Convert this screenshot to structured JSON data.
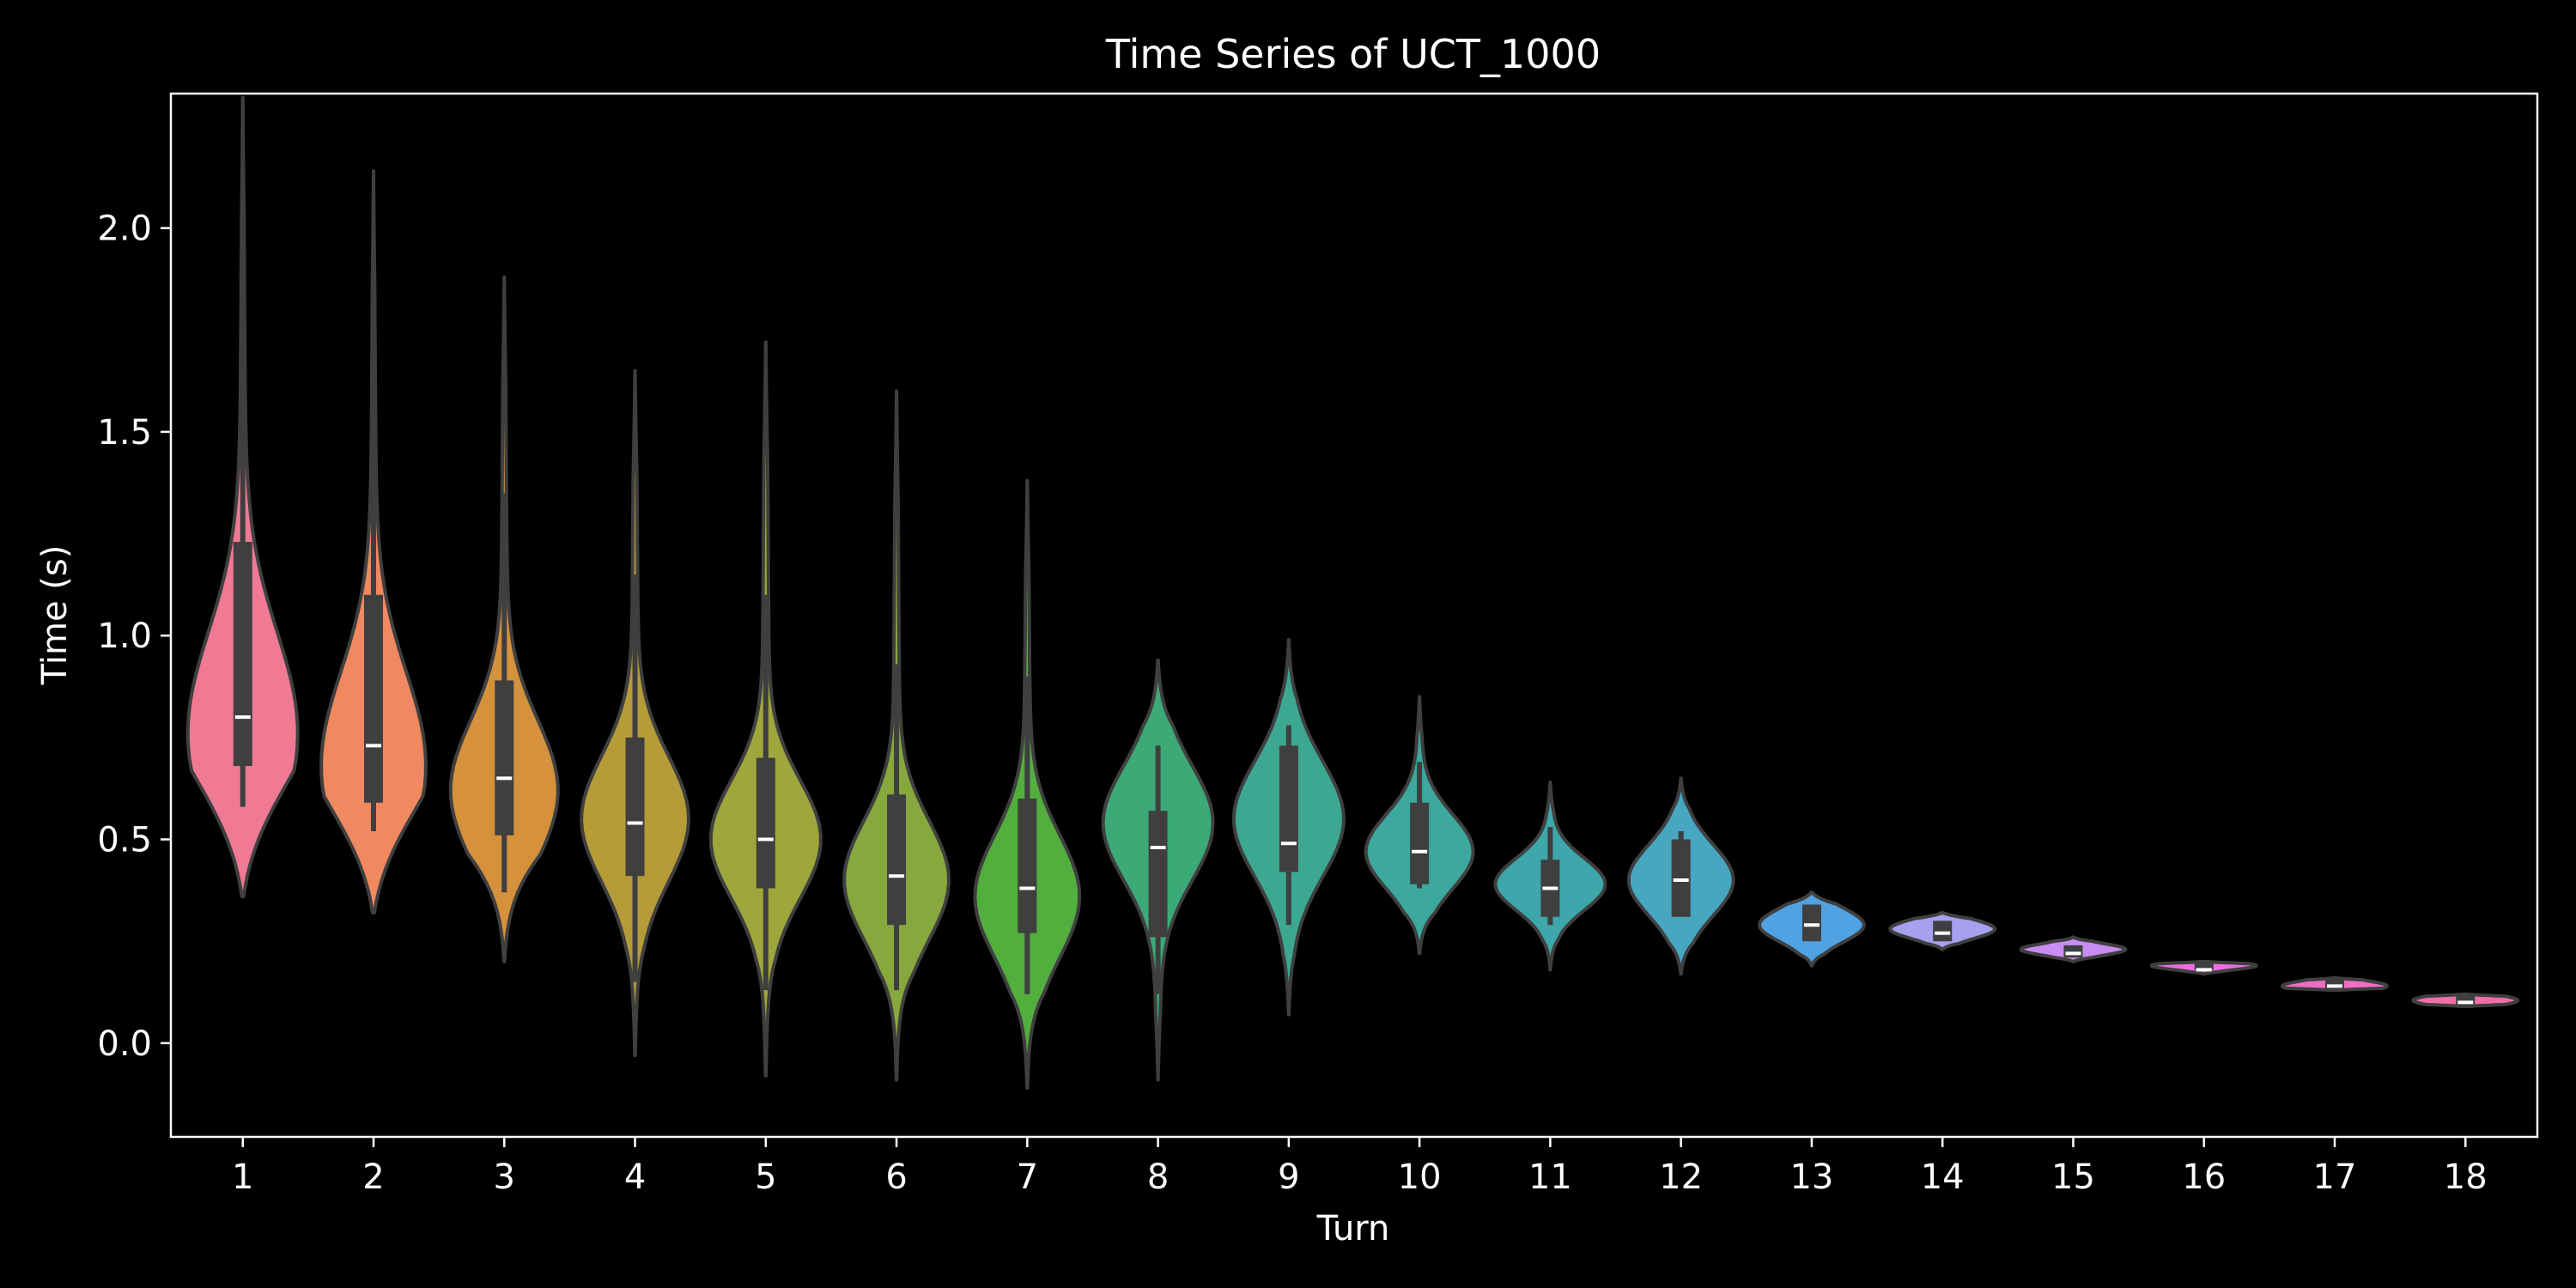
{
  "chart_data": {
    "type": "violin",
    "title": "Time Series of UCT_1000",
    "xlabel": "Turn",
    "ylabel": "Time (s)",
    "ylim": [
      -0.23,
      2.33
    ],
    "yticks": [
      0.0,
      0.5,
      1.0,
      1.5,
      2.0
    ],
    "ytick_labels": [
      "0.0",
      "0.5",
      "1.0",
      "1.5",
      "2.0"
    ],
    "categories": [
      "1",
      "2",
      "3",
      "4",
      "5",
      "6",
      "7",
      "8",
      "9",
      "10",
      "11",
      "12",
      "13",
      "14",
      "15",
      "16",
      "17",
      "18"
    ],
    "grid": false,
    "colors": [
      "#f07a94",
      "#f08860",
      "#d5913c",
      "#b69b39",
      "#9ea63c",
      "#87a83d",
      "#52ae3d",
      "#3caa77",
      "#3ca892",
      "#3ca89e",
      "#3ea7ab",
      "#47a6c0",
      "#50a2e2",
      "#a6a0ee",
      "#c98cf2",
      "#ec6fe0",
      "#ef6dc5",
      "#f26ea8"
    ],
    "series": [
      {
        "category": "1",
        "min": 0.36,
        "max": 2.32,
        "q1": 0.68,
        "median": 0.8,
        "q3": 1.23,
        "whisker_low": 0.58,
        "whisker_high": 1.96,
        "mode": 0.76,
        "width": 0.42
      },
      {
        "category": "2",
        "min": 0.32,
        "max": 2.14,
        "q1": 0.59,
        "median": 0.73,
        "q3": 1.1,
        "whisker_low": 0.52,
        "whisker_high": 1.78,
        "mode": 0.68,
        "width": 0.4
      },
      {
        "category": "3",
        "min": 0.2,
        "max": 1.88,
        "q1": 0.51,
        "median": 0.65,
        "q3": 0.89,
        "whisker_low": 0.37,
        "whisker_high": 1.35,
        "mode": 0.62,
        "width": 0.41
      },
      {
        "category": "4",
        "min": -0.03,
        "max": 1.65,
        "q1": 0.41,
        "median": 0.54,
        "q3": 0.75,
        "whisker_low": 0.15,
        "whisker_high": 1.15,
        "mode": 0.55,
        "width": 0.41
      },
      {
        "category": "5",
        "min": -0.08,
        "max": 1.72,
        "q1": 0.38,
        "median": 0.5,
        "q3": 0.7,
        "whisker_low": 0.13,
        "whisker_high": 1.1,
        "mode": 0.5,
        "width": 0.42
      },
      {
        "category": "6",
        "min": -0.09,
        "max": 1.6,
        "q1": 0.29,
        "median": 0.41,
        "q3": 0.61,
        "whisker_low": 0.13,
        "whisker_high": 0.93,
        "mode": 0.4,
        "width": 0.4
      },
      {
        "category": "7",
        "min": -0.11,
        "max": 1.38,
        "q1": 0.27,
        "median": 0.38,
        "q3": 0.6,
        "whisker_low": 0.12,
        "whisker_high": 0.9,
        "mode": 0.36,
        "width": 0.4
      },
      {
        "category": "8",
        "min": -0.09,
        "max": 0.94,
        "q1": 0.26,
        "median": 0.48,
        "q3": 0.57,
        "whisker_low": 0.12,
        "whisker_high": 0.73,
        "mode": 0.54,
        "width": 0.42
      },
      {
        "category": "9",
        "min": 0.07,
        "max": 0.99,
        "q1": 0.42,
        "median": 0.49,
        "q3": 0.73,
        "whisker_low": 0.29,
        "whisker_high": 0.78,
        "mode": 0.55,
        "width": 0.42
      },
      {
        "category": "10",
        "min": 0.22,
        "max": 0.85,
        "q1": 0.39,
        "median": 0.47,
        "q3": 0.59,
        "whisker_low": 0.38,
        "whisker_high": 0.69,
        "mode": 0.47,
        "width": 0.41
      },
      {
        "category": "11",
        "min": 0.18,
        "max": 0.64,
        "q1": 0.31,
        "median": 0.38,
        "q3": 0.45,
        "whisker_low": 0.29,
        "whisker_high": 0.53,
        "mode": 0.39,
        "width": 0.42
      },
      {
        "category": "12",
        "min": 0.17,
        "max": 0.65,
        "q1": 0.31,
        "median": 0.4,
        "q3": 0.5,
        "whisker_low": 0.31,
        "whisker_high": 0.52,
        "mode": 0.4,
        "width": 0.4
      },
      {
        "category": "13",
        "min": 0.19,
        "max": 0.37,
        "q1": 0.25,
        "median": 0.29,
        "q3": 0.34,
        "whisker_low": 0.25,
        "whisker_high": 0.34,
        "mode": 0.29,
        "width": 0.4
      },
      {
        "category": "14",
        "min": 0.23,
        "max": 0.32,
        "q1": 0.25,
        "median": 0.27,
        "q3": 0.3,
        "whisker_low": 0.25,
        "whisker_high": 0.3,
        "mode": 0.28,
        "width": 0.4
      },
      {
        "category": "15",
        "min": 0.2,
        "max": 0.26,
        "q1": 0.21,
        "median": 0.22,
        "q3": 0.24,
        "whisker_low": 0.21,
        "whisker_high": 0.24,
        "mode": 0.23,
        "width": 0.4
      },
      {
        "category": "16",
        "min": 0.17,
        "max": 0.2,
        "q1": 0.18,
        "median": 0.18,
        "q3": 0.2,
        "whisker_low": 0.18,
        "whisker_high": 0.2,
        "mode": 0.19,
        "width": 0.4
      },
      {
        "category": "17",
        "min": 0.13,
        "max": 0.16,
        "q1": 0.13,
        "median": 0.14,
        "q3": 0.16,
        "whisker_low": 0.13,
        "whisker_high": 0.16,
        "mode": 0.14,
        "width": 0.4
      },
      {
        "category": "18",
        "min": 0.09,
        "max": 0.12,
        "q1": 0.09,
        "median": 0.1,
        "q3": 0.12,
        "whisker_low": 0.09,
        "whisker_high": 0.12,
        "mode": 0.105,
        "width": 0.4
      }
    ]
  }
}
